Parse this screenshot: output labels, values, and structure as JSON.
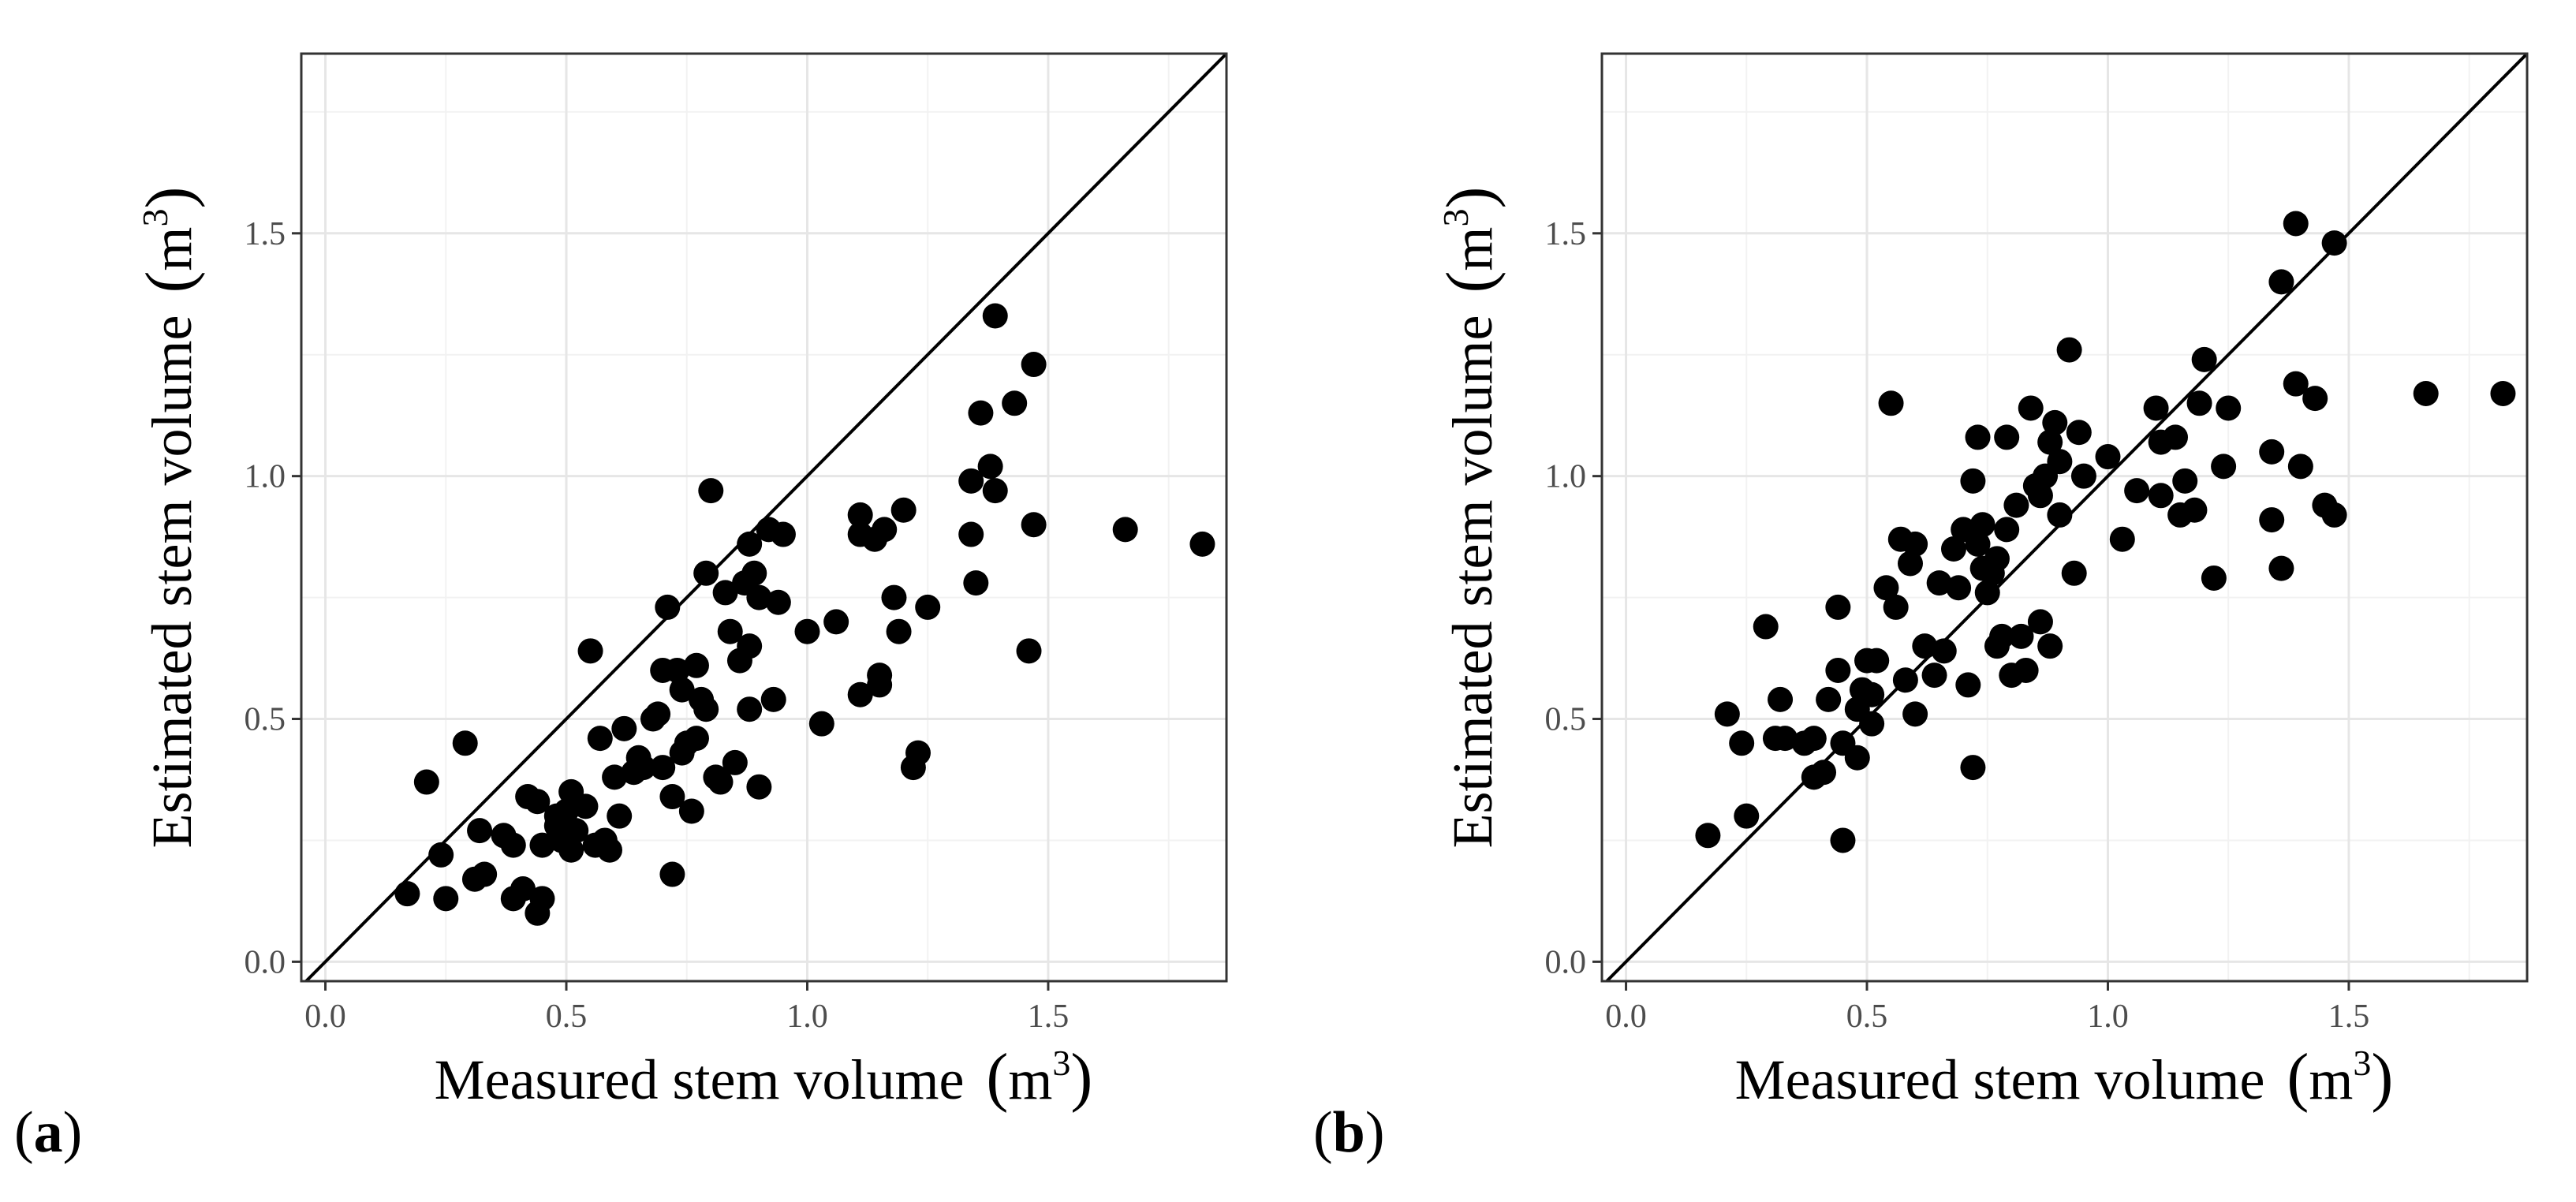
{
  "chart_data": [
    {
      "type": "scatter",
      "panel_label": "a",
      "xlabel": "Measured stem volume",
      "ylabel": "Estimated stem volume",
      "unit_base": "m",
      "unit_exp": "3",
      "xlim": [
        -0.05,
        1.87
      ],
      "ylim": [
        -0.04,
        1.87
      ],
      "x_ticks": [
        "0.0",
        "0.5",
        "1.0",
        "1.5"
      ],
      "y_ticks": [
        "0.0",
        "0.5",
        "1.0",
        "1.5"
      ],
      "reference_line": "1:1",
      "grid": true,
      "points": [
        [
          0.17,
          0.14
        ],
        [
          0.21,
          0.37
        ],
        [
          0.24,
          0.22
        ],
        [
          0.25,
          0.13
        ],
        [
          0.29,
          0.45
        ],
        [
          0.31,
          0.17
        ],
        [
          0.32,
          0.27
        ],
        [
          0.33,
          0.18
        ],
        [
          0.37,
          0.26
        ],
        [
          0.39,
          0.24
        ],
        [
          0.39,
          0.13
        ],
        [
          0.41,
          0.15
        ],
        [
          0.42,
          0.34
        ],
        [
          0.44,
          0.33
        ],
        [
          0.44,
          0.1
        ],
        [
          0.45,
          0.24
        ],
        [
          0.45,
          0.13
        ],
        [
          0.48,
          0.3
        ],
        [
          0.48,
          0.28
        ],
        [
          0.49,
          0.25
        ],
        [
          0.5,
          0.31
        ],
        [
          0.51,
          0.23
        ],
        [
          0.51,
          0.35
        ],
        [
          0.52,
          0.27
        ],
        [
          0.54,
          0.32
        ],
        [
          0.55,
          0.64
        ],
        [
          0.56,
          0.24
        ],
        [
          0.57,
          0.46
        ],
        [
          0.58,
          0.25
        ],
        [
          0.59,
          0.23
        ],
        [
          0.6,
          0.38
        ],
        [
          0.61,
          0.3
        ],
        [
          0.62,
          0.48
        ],
        [
          0.64,
          0.39
        ],
        [
          0.65,
          0.42
        ],
        [
          0.66,
          0.4
        ],
        [
          0.68,
          0.5
        ],
        [
          0.69,
          0.51
        ],
        [
          0.7,
          0.6
        ],
        [
          0.7,
          0.4
        ],
        [
          0.71,
          0.73
        ],
        [
          0.72,
          0.18
        ],
        [
          0.72,
          0.34
        ],
        [
          0.73,
          0.6
        ],
        [
          0.74,
          0.56
        ],
        [
          0.74,
          0.43
        ],
        [
          0.75,
          0.45
        ],
        [
          0.76,
          0.31
        ],
        [
          0.77,
          0.46
        ],
        [
          0.77,
          0.61
        ],
        [
          0.78,
          0.54
        ],
        [
          0.79,
          0.8
        ],
        [
          0.79,
          0.52
        ],
        [
          0.8,
          0.97
        ],
        [
          0.81,
          0.38
        ],
        [
          0.82,
          0.37
        ],
        [
          0.83,
          0.76
        ],
        [
          0.84,
          0.68
        ],
        [
          0.85,
          0.41
        ],
        [
          0.86,
          0.62
        ],
        [
          0.87,
          0.78
        ],
        [
          0.88,
          0.65
        ],
        [
          0.88,
          0.52
        ],
        [
          0.88,
          0.86
        ],
        [
          0.89,
          0.8
        ],
        [
          0.9,
          0.36
        ],
        [
          0.9,
          0.75
        ],
        [
          0.92,
          0.89
        ],
        [
          0.93,
          0.54
        ],
        [
          0.94,
          0.74
        ],
        [
          0.95,
          0.88
        ],
        [
          1.0,
          0.68
        ],
        [
          1.03,
          0.49
        ],
        [
          1.06,
          0.7
        ],
        [
          1.11,
          0.92
        ],
        [
          1.11,
          0.88
        ],
        [
          1.11,
          0.55
        ],
        [
          1.14,
          0.87
        ],
        [
          1.15,
          0.59
        ],
        [
          1.15,
          0.57
        ],
        [
          1.16,
          0.89
        ],
        [
          1.18,
          0.75
        ],
        [
          1.19,
          0.68
        ],
        [
          1.2,
          0.93
        ],
        [
          1.22,
          0.4
        ],
        [
          1.23,
          0.43
        ],
        [
          1.25,
          0.73
        ],
        [
          1.34,
          0.99
        ],
        [
          1.34,
          0.88
        ],
        [
          1.35,
          0.78
        ],
        [
          1.36,
          1.13
        ],
        [
          1.38,
          1.02
        ],
        [
          1.39,
          1.33
        ],
        [
          1.39,
          0.97
        ],
        [
          1.43,
          1.15
        ],
        [
          1.46,
          0.64
        ],
        [
          1.47,
          1.23
        ],
        [
          1.47,
          0.9
        ],
        [
          1.66,
          0.89
        ],
        [
          1.82,
          0.86
        ]
      ]
    },
    {
      "type": "scatter",
      "panel_label": "b",
      "xlabel": "Measured stem volume",
      "ylabel": "Estimated stem volume",
      "unit_base": "m",
      "unit_exp": "3",
      "xlim": [
        -0.05,
        1.87
      ],
      "ylim": [
        -0.04,
        1.87
      ],
      "x_ticks": [
        "0.0",
        "0.5",
        "1.0",
        "1.5"
      ],
      "y_ticks": [
        "0.0",
        "0.5",
        "1.0",
        "1.5"
      ],
      "reference_line": "1:1",
      "grid": true,
      "points": [
        [
          0.17,
          0.26
        ],
        [
          0.21,
          0.51
        ],
        [
          0.24,
          0.45
        ],
        [
          0.25,
          0.3
        ],
        [
          0.29,
          0.69
        ],
        [
          0.31,
          0.46
        ],
        [
          0.32,
          0.54
        ],
        [
          0.33,
          0.46
        ],
        [
          0.37,
          0.45
        ],
        [
          0.39,
          0.38
        ],
        [
          0.39,
          0.46
        ],
        [
          0.41,
          0.39
        ],
        [
          0.42,
          0.54
        ],
        [
          0.44,
          0.73
        ],
        [
          0.44,
          0.6
        ],
        [
          0.45,
          0.25
        ],
        [
          0.45,
          0.45
        ],
        [
          0.48,
          0.52
        ],
        [
          0.48,
          0.42
        ],
        [
          0.49,
          0.56
        ],
        [
          0.5,
          0.62
        ],
        [
          0.51,
          0.49
        ],
        [
          0.51,
          0.55
        ],
        [
          0.52,
          0.62
        ],
        [
          0.54,
          0.77
        ],
        [
          0.55,
          1.15
        ],
        [
          0.56,
          0.73
        ],
        [
          0.57,
          0.87
        ],
        [
          0.58,
          0.58
        ],
        [
          0.59,
          0.82
        ],
        [
          0.6,
          0.86
        ],
        [
          0.6,
          0.51
        ],
        [
          0.62,
          0.65
        ],
        [
          0.64,
          0.59
        ],
        [
          0.65,
          0.78
        ],
        [
          0.66,
          0.64
        ],
        [
          0.68,
          0.85
        ],
        [
          0.69,
          0.77
        ],
        [
          0.7,
          0.89
        ],
        [
          0.71,
          0.57
        ],
        [
          0.72,
          0.99
        ],
        [
          0.72,
          0.4
        ],
        [
          0.73,
          0.86
        ],
        [
          0.73,
          1.08
        ],
        [
          0.74,
          0.9
        ],
        [
          0.74,
          0.81
        ],
        [
          0.75,
          0.76
        ],
        [
          0.76,
          0.8
        ],
        [
          0.77,
          0.65
        ],
        [
          0.77,
          0.83
        ],
        [
          0.78,
          0.67
        ],
        [
          0.79,
          0.89
        ],
        [
          0.79,
          1.08
        ],
        [
          0.8,
          0.59
        ],
        [
          0.81,
          0.94
        ],
        [
          0.82,
          0.67
        ],
        [
          0.83,
          0.6
        ],
        [
          0.84,
          1.14
        ],
        [
          0.85,
          0.98
        ],
        [
          0.86,
          0.96
        ],
        [
          0.86,
          0.7
        ],
        [
          0.87,
          1.0
        ],
        [
          0.88,
          1.07
        ],
        [
          0.88,
          0.65
        ],
        [
          0.89,
          1.11
        ],
        [
          0.9,
          1.03
        ],
        [
          0.9,
          0.92
        ],
        [
          0.92,
          1.26
        ],
        [
          0.93,
          0.8
        ],
        [
          0.94,
          1.09
        ],
        [
          0.95,
          1.0
        ],
        [
          1.0,
          1.04
        ],
        [
          1.03,
          0.87
        ],
        [
          1.06,
          0.97
        ],
        [
          1.1,
          1.14
        ],
        [
          1.11,
          1.07
        ],
        [
          1.11,
          0.96
        ],
        [
          1.14,
          1.08
        ],
        [
          1.15,
          0.92
        ],
        [
          1.16,
          0.99
        ],
        [
          1.18,
          0.93
        ],
        [
          1.19,
          1.15
        ],
        [
          1.2,
          1.24
        ],
        [
          1.22,
          0.79
        ],
        [
          1.24,
          1.02
        ],
        [
          1.25,
          1.14
        ],
        [
          1.34,
          1.05
        ],
        [
          1.34,
          0.91
        ],
        [
          1.36,
          0.81
        ],
        [
          1.36,
          1.4
        ],
        [
          1.39,
          1.52
        ],
        [
          1.39,
          1.19
        ],
        [
          1.4,
          1.02
        ],
        [
          1.43,
          1.16
        ],
        [
          1.45,
          0.94
        ],
        [
          1.47,
          1.48
        ],
        [
          1.47,
          0.92
        ],
        [
          1.66,
          1.17
        ],
        [
          1.82,
          1.17
        ]
      ]
    }
  ]
}
